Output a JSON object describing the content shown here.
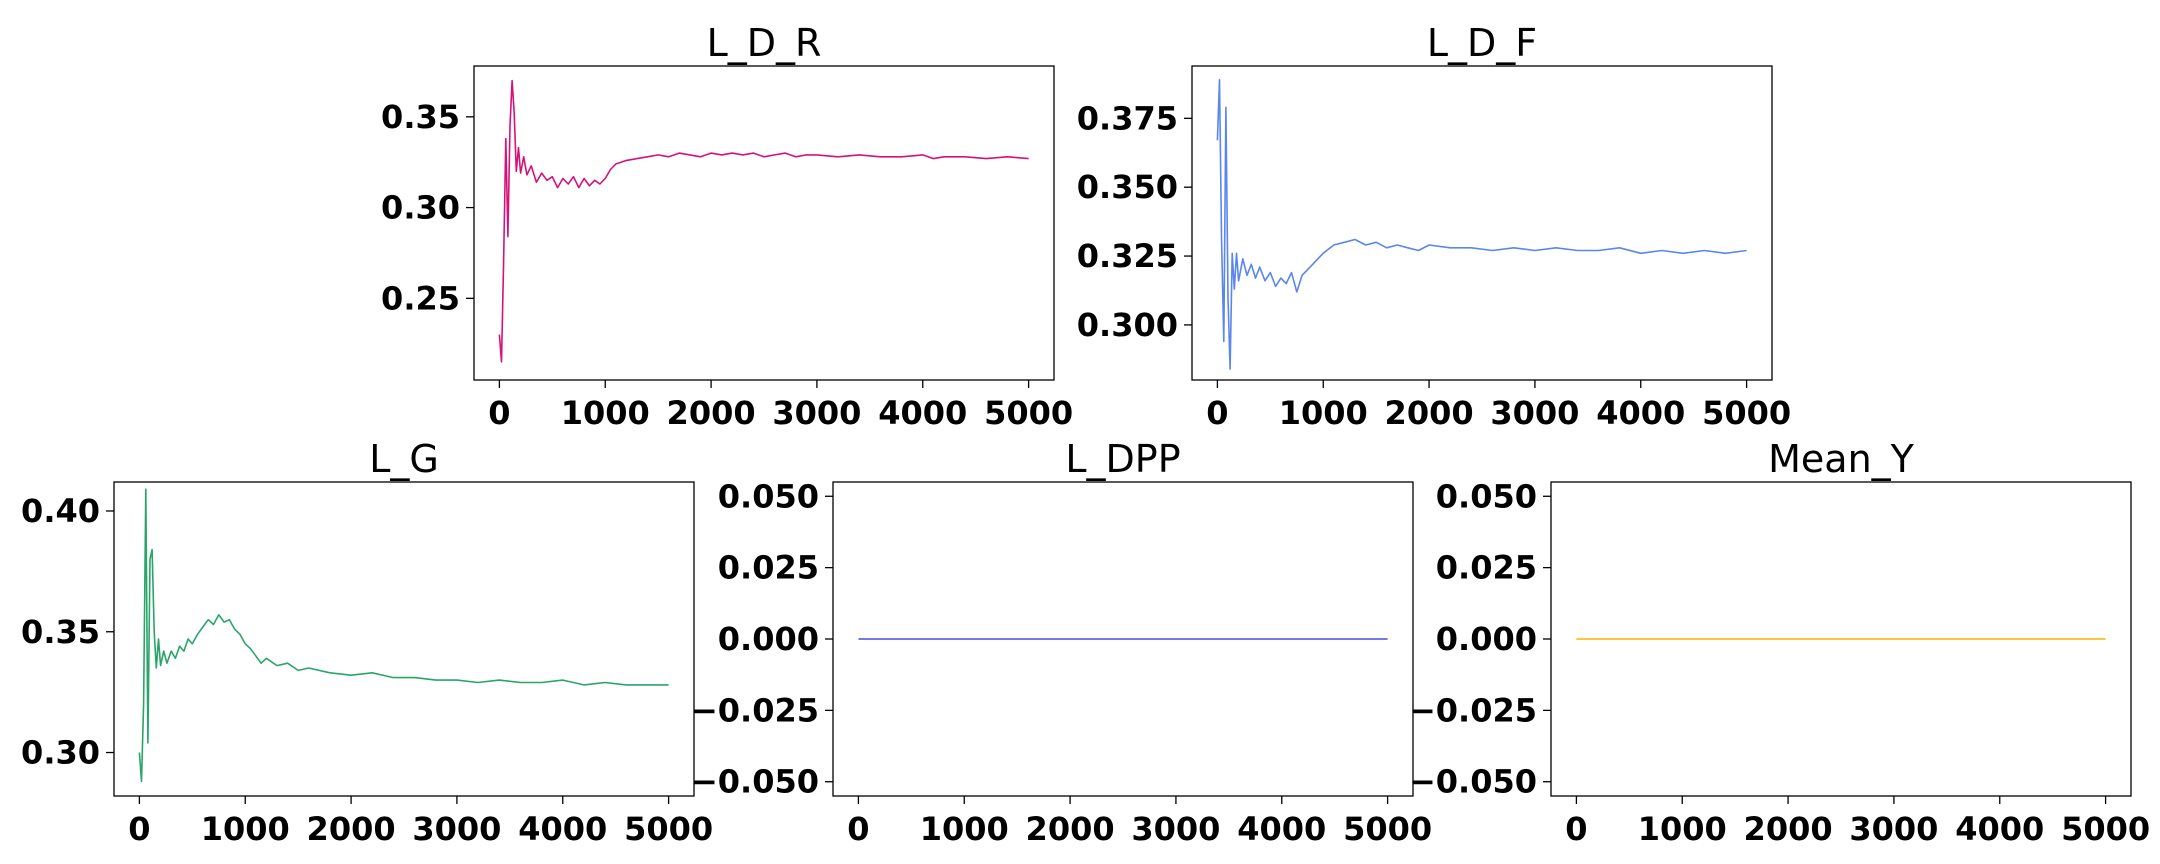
{
  "chart_data": [
    {
      "type": "line",
      "title": "L_D_R",
      "color": "#d6127a",
      "xlim": [
        -240,
        5240
      ],
      "ylim": [
        0.205,
        0.378
      ],
      "xticks": [
        0,
        1000,
        2000,
        3000,
        4000,
        5000
      ],
      "yticks": [
        0.25,
        0.3,
        0.35
      ],
      "ytick_labels": [
        "0.25",
        "0.30",
        "0.35"
      ],
      "x": [
        0,
        20,
        40,
        60,
        80,
        100,
        120,
        140,
        160,
        180,
        200,
        230,
        260,
        300,
        350,
        400,
        450,
        500,
        550,
        600,
        650,
        700,
        750,
        800,
        850,
        900,
        950,
        1000,
        1050,
        1100,
        1200,
        1300,
        1400,
        1500,
        1600,
        1700,
        1800,
        1900,
        2000,
        2100,
        2200,
        2300,
        2400,
        2500,
        2600,
        2700,
        2800,
        2900,
        3000,
        3200,
        3400,
        3600,
        3800,
        4000,
        4100,
        4200,
        4400,
        4600,
        4800,
        5000
      ],
      "y": [
        0.23,
        0.215,
        0.27,
        0.338,
        0.284,
        0.345,
        0.37,
        0.352,
        0.32,
        0.333,
        0.319,
        0.328,
        0.318,
        0.323,
        0.314,
        0.319,
        0.315,
        0.317,
        0.311,
        0.316,
        0.313,
        0.317,
        0.311,
        0.316,
        0.312,
        0.315,
        0.313,
        0.316,
        0.321,
        0.324,
        0.326,
        0.327,
        0.328,
        0.329,
        0.328,
        0.33,
        0.329,
        0.328,
        0.33,
        0.329,
        0.33,
        0.329,
        0.33,
        0.328,
        0.329,
        0.33,
        0.328,
        0.329,
        0.329,
        0.328,
        0.329,
        0.328,
        0.328,
        0.329,
        0.327,
        0.328,
        0.328,
        0.327,
        0.328,
        0.327
      ]
    },
    {
      "type": "line",
      "title": "L_D_F",
      "color": "#5b86ee",
      "xlim": [
        -240,
        5240
      ],
      "ylim": [
        0.28,
        0.394
      ],
      "xticks": [
        0,
        1000,
        2000,
        3000,
        4000,
        5000
      ],
      "yticks": [
        0.3,
        0.325,
        0.35,
        0.375
      ],
      "ytick_labels": [
        "0.300",
        "0.325",
        "0.350",
        "0.375"
      ],
      "x": [
        0,
        20,
        40,
        60,
        80,
        100,
        120,
        140,
        160,
        180,
        200,
        240,
        280,
        320,
        360,
        400,
        450,
        500,
        550,
        600,
        650,
        700,
        750,
        800,
        850,
        900,
        950,
        1000,
        1100,
        1200,
        1300,
        1400,
        1500,
        1600,
        1700,
        1800,
        1900,
        2000,
        2200,
        2400,
        2600,
        2800,
        3000,
        3200,
        3400,
        3600,
        3800,
        4000,
        4200,
        4400,
        4600,
        4800,
        5000
      ],
      "y": [
        0.367,
        0.389,
        0.33,
        0.294,
        0.379,
        0.31,
        0.284,
        0.326,
        0.313,
        0.326,
        0.316,
        0.324,
        0.318,
        0.322,
        0.317,
        0.321,
        0.316,
        0.319,
        0.314,
        0.317,
        0.315,
        0.319,
        0.312,
        0.318,
        0.32,
        0.322,
        0.324,
        0.326,
        0.329,
        0.33,
        0.331,
        0.329,
        0.33,
        0.328,
        0.329,
        0.328,
        0.327,
        0.329,
        0.328,
        0.328,
        0.327,
        0.328,
        0.327,
        0.328,
        0.327,
        0.327,
        0.328,
        0.326,
        0.327,
        0.326,
        0.327,
        0.326,
        0.327
      ]
    },
    {
      "type": "line",
      "title": "L_G",
      "color": "#2aa56a",
      "xlim": [
        -240,
        5240
      ],
      "ylim": [
        0.282,
        0.412
      ],
      "xticks": [
        0,
        1000,
        2000,
        3000,
        4000,
        5000
      ],
      "yticks": [
        0.3,
        0.35,
        0.4
      ],
      "ytick_labels": [
        "0.30",
        "0.35",
        "0.40"
      ],
      "x": [
        0,
        20,
        40,
        60,
        80,
        100,
        120,
        140,
        160,
        180,
        200,
        230,
        260,
        300,
        340,
        380,
        420,
        460,
        500,
        550,
        600,
        650,
        700,
        750,
        800,
        850,
        900,
        950,
        1000,
        1050,
        1100,
        1150,
        1200,
        1300,
        1400,
        1500,
        1600,
        1800,
        2000,
        2200,
        2400,
        2600,
        2800,
        3000,
        3200,
        3400,
        3600,
        3800,
        4000,
        4200,
        4400,
        4600,
        4800,
        5000
      ],
      "y": [
        0.3,
        0.288,
        0.32,
        0.409,
        0.304,
        0.38,
        0.384,
        0.35,
        0.335,
        0.347,
        0.336,
        0.342,
        0.337,
        0.342,
        0.339,
        0.344,
        0.342,
        0.347,
        0.345,
        0.349,
        0.352,
        0.355,
        0.353,
        0.357,
        0.354,
        0.355,
        0.351,
        0.349,
        0.345,
        0.343,
        0.34,
        0.337,
        0.339,
        0.336,
        0.337,
        0.334,
        0.335,
        0.333,
        0.332,
        0.333,
        0.331,
        0.331,
        0.33,
        0.33,
        0.329,
        0.33,
        0.329,
        0.329,
        0.33,
        0.328,
        0.329,
        0.328,
        0.328,
        0.328
      ]
    },
    {
      "type": "line",
      "title": "L_DPP",
      "color": "#4d4dde",
      "xlim": [
        -240,
        5240
      ],
      "ylim": [
        -0.055,
        0.055
      ],
      "xticks": [
        0,
        1000,
        2000,
        3000,
        4000,
        5000
      ],
      "yticks": [
        -0.05,
        -0.025,
        0.0,
        0.025,
        0.05
      ],
      "ytick_labels": [
        "−0.050",
        "−0.025",
        "0.000",
        "0.025",
        "0.050"
      ],
      "x": [
        0,
        5000
      ],
      "y": [
        0.0,
        0.0
      ]
    },
    {
      "type": "line",
      "title": "Mean_Y",
      "color": "#f5b700",
      "xlim": [
        -240,
        5240
      ],
      "ylim": [
        -0.055,
        0.055
      ],
      "xticks": [
        0,
        1000,
        2000,
        3000,
        4000,
        5000
      ],
      "yticks": [
        -0.05,
        -0.025,
        0.0,
        0.025,
        0.05
      ],
      "ytick_labels": [
        "−0.050",
        "−0.025",
        "0.000",
        "0.025",
        "0.050"
      ],
      "x": [
        0,
        5000
      ],
      "y": [
        0.0,
        0.0
      ]
    }
  ]
}
